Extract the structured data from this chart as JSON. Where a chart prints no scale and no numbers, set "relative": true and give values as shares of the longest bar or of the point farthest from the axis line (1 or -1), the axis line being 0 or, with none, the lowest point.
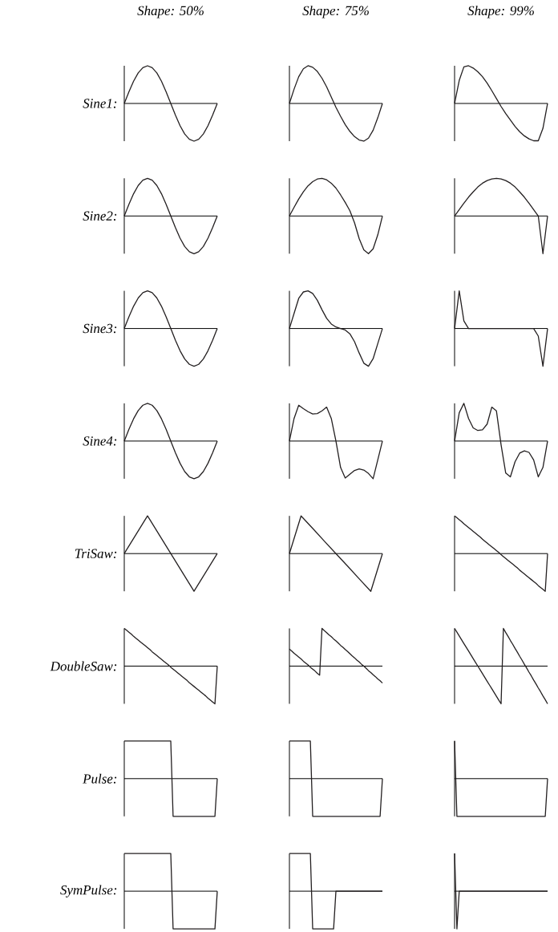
{
  "chart_data": [
    {
      "type": "line",
      "title": "Shape: 50%",
      "ylabel": "Sine1:",
      "relative": true,
      "color": "#231f20",
      "categories": [
        null,
        null,
        null,
        null,
        null,
        null,
        null,
        null,
        null,
        null,
        null,
        null,
        null,
        null,
        null,
        null,
        null,
        null,
        null,
        null,
        null
      ],
      "values": [
        0,
        0.31,
        0.59,
        0.81,
        0.95,
        1,
        0.95,
        0.81,
        0.59,
        0.31,
        0,
        -0.31,
        -0.59,
        -0.81,
        -0.95,
        -1,
        -0.95,
        -0.81,
        -0.59,
        -0.31,
        0
      ]
    },
    {
      "type": "line",
      "title": "Shape: 75%",
      "relative": true,
      "color": "#231f20",
      "categories": [
        null,
        null,
        null,
        null,
        null,
        null,
        null,
        null,
        null,
        null,
        null,
        null,
        null,
        null,
        null,
        null,
        null,
        null,
        null,
        null,
        null
      ],
      "values": [
        0,
        0.38,
        0.71,
        0.92,
        1,
        0.96,
        0.85,
        0.67,
        0.44,
        0.17,
        -0.1,
        -0.34,
        -0.56,
        -0.74,
        -0.88,
        -0.97,
        -1,
        -0.92,
        -0.71,
        -0.38,
        0
      ]
    },
    {
      "type": "line",
      "title": "Shape: 99%",
      "relative": true,
      "color": "#231f20",
      "categories": [
        null,
        null,
        null,
        null,
        null,
        null,
        null,
        null,
        null,
        null,
        null,
        null,
        null,
        null,
        null,
        null,
        null,
        null,
        null,
        null,
        null
      ],
      "values": [
        0,
        0.61,
        0.97,
        1,
        0.94,
        0.84,
        0.71,
        0.54,
        0.34,
        0.13,
        -0.08,
        -0.27,
        -0.44,
        -0.61,
        -0.75,
        -0.86,
        -0.94,
        -0.99,
        -0.99,
        -0.66,
        0
      ]
    },
    {
      "type": "line",
      "ylabel": "Sine2:",
      "relative": true,
      "color": "#231f20",
      "categories": [
        null,
        null,
        null,
        null,
        null,
        null,
        null,
        null,
        null,
        null,
        null,
        null,
        null,
        null,
        null,
        null,
        null,
        null,
        null,
        null,
        null
      ],
      "values": [
        0,
        0.31,
        0.59,
        0.81,
        0.95,
        1,
        0.95,
        0.81,
        0.59,
        0.31,
        0,
        -0.31,
        -0.59,
        -0.81,
        -0.95,
        -1,
        -0.95,
        -0.81,
        -0.59,
        -0.31,
        0
      ]
    },
    {
      "type": "line",
      "relative": true,
      "color": "#231f20",
      "categories": [
        null,
        null,
        null,
        null,
        null,
        null,
        null,
        null,
        null,
        null,
        null,
        null,
        null,
        null,
        null,
        null,
        null,
        null,
        null,
        null,
        null
      ],
      "values": [
        0,
        0.23,
        0.45,
        0.64,
        0.8,
        0.91,
        0.98,
        1,
        0.96,
        0.87,
        0.74,
        0.56,
        0.36,
        0.14,
        -0.18,
        -0.6,
        -0.9,
        -1,
        -0.87,
        -0.5,
        0
      ]
    },
    {
      "type": "line",
      "relative": true,
      "color": "#231f20",
      "categories": [
        null,
        null,
        null,
        null,
        null,
        null,
        null,
        null,
        null,
        null,
        null,
        null,
        null,
        null,
        null,
        null,
        null,
        null,
        null,
        null,
        null
      ],
      "values": [
        0,
        0.17,
        0.34,
        0.5,
        0.64,
        0.77,
        0.87,
        0.94,
        0.98,
        1,
        0.98,
        0.94,
        0.87,
        0.77,
        0.64,
        0.5,
        0.34,
        0.17,
        0,
        -1,
        0
      ]
    },
    {
      "type": "line",
      "ylabel": "Sine3:",
      "relative": true,
      "color": "#231f20",
      "categories": [
        null,
        null,
        null,
        null,
        null,
        null,
        null,
        null,
        null,
        null,
        null,
        null,
        null,
        null,
        null,
        null,
        null,
        null,
        null,
        null,
        null
      ],
      "values": [
        0,
        0.31,
        0.59,
        0.81,
        0.95,
        1,
        0.95,
        0.81,
        0.59,
        0.31,
        0,
        -0.31,
        -0.59,
        -0.81,
        -0.95,
        -1,
        -0.95,
        -0.81,
        -0.59,
        -0.31,
        0
      ]
    },
    {
      "type": "line",
      "relative": true,
      "color": "#231f20",
      "categories": [
        null,
        null,
        null,
        null,
        null,
        null,
        null,
        null,
        null,
        null,
        null,
        null,
        null,
        null,
        null,
        null,
        null,
        null,
        null,
        null,
        null
      ],
      "values": [
        0,
        0.4,
        0.8,
        0.97,
        1,
        0.93,
        0.75,
        0.5,
        0.27,
        0.12,
        0.04,
        0,
        -0.04,
        -0.14,
        -0.35,
        -0.65,
        -0.92,
        -1,
        -0.8,
        -0.4,
        0
      ]
    },
    {
      "type": "line",
      "relative": true,
      "color": "#231f20",
      "categories": [
        null,
        null,
        null,
        null,
        null,
        null,
        null,
        null,
        null,
        null,
        null,
        null,
        null,
        null,
        null,
        null,
        null,
        null,
        null,
        null,
        null
      ],
      "values": [
        0,
        1,
        0.2,
        0,
        0,
        0,
        0,
        0,
        0,
        0,
        0,
        0,
        0,
        0,
        0,
        0,
        0,
        0,
        -0.2,
        -1,
        0
      ]
    },
    {
      "type": "line",
      "ylabel": "Sine4:",
      "relative": true,
      "color": "#231f20",
      "categories": [
        null,
        null,
        null,
        null,
        null,
        null,
        null,
        null,
        null,
        null,
        null,
        null,
        null,
        null,
        null,
        null,
        null,
        null,
        null,
        null,
        null
      ],
      "values": [
        0,
        0.31,
        0.59,
        0.81,
        0.95,
        1,
        0.95,
        0.81,
        0.59,
        0.31,
        0,
        -0.31,
        -0.59,
        -0.81,
        -0.95,
        -1,
        -0.95,
        -0.81,
        -0.59,
        -0.31,
        0
      ]
    },
    {
      "type": "line",
      "relative": true,
      "color": "#231f20",
      "categories": [
        null,
        null,
        null,
        null,
        null,
        null,
        null,
        null,
        null,
        null,
        null,
        null,
        null,
        null,
        null,
        null,
        null,
        null,
        null,
        null,
        null
      ],
      "values": [
        0,
        0.6,
        0.95,
        0.86,
        0.78,
        0.72,
        0.73,
        0.8,
        0.9,
        0.6,
        0,
        -0.7,
        -0.98,
        -0.88,
        -0.78,
        -0.74,
        -0.77,
        -0.86,
        -1,
        -0.5,
        0
      ]
    },
    {
      "type": "line",
      "relative": true,
      "color": "#231f20",
      "categories": [
        null,
        null,
        null,
        null,
        null,
        null,
        null,
        null,
        null,
        null,
        null,
        null,
        null,
        null,
        null,
        null,
        null,
        null,
        null,
        null,
        null
      ],
      "values": [
        0,
        0.75,
        1,
        0.6,
        0.35,
        0.28,
        0.3,
        0.45,
        0.9,
        0.8,
        -0.1,
        -0.85,
        -0.95,
        -0.55,
        -0.32,
        -0.26,
        -0.3,
        -0.5,
        -0.95,
        -0.7,
        0
      ]
    },
    {
      "type": "line",
      "ylabel": "TriSaw:",
      "relative": true,
      "color": "#231f20",
      "categories": [
        null,
        null,
        null,
        null,
        null
      ],
      "values": [
        0,
        1,
        0,
        -1,
        0
      ]
    },
    {
      "type": "line",
      "relative": true,
      "color": "#231f20",
      "categories": [
        null,
        null,
        null,
        null,
        null,
        null,
        null,
        null,
        null
      ],
      "values": [
        0,
        1,
        0.67,
        0.33,
        0,
        -0.33,
        -0.67,
        -1,
        0
      ]
    },
    {
      "type": "line",
      "relative": true,
      "color": "#231f20",
      "categories": [
        null,
        null,
        null,
        null,
        null,
        null,
        null,
        null,
        null,
        null,
        null,
        null,
        null,
        null,
        null,
        null,
        null,
        null,
        null,
        null,
        null,
        null,
        null,
        null,
        null,
        null,
        null,
        null,
        null,
        null,
        null,
        null,
        null,
        null,
        null,
        null,
        null,
        null,
        null,
        null,
        null
      ],
      "values": [
        1,
        0.95,
        0.9,
        0.85,
        0.79,
        0.74,
        0.69,
        0.64,
        0.59,
        0.54,
        0.49,
        0.44,
        0.38,
        0.33,
        0.28,
        0.23,
        0.18,
        0.13,
        0.08,
        0.03,
        -0.03,
        -0.08,
        -0.13,
        -0.18,
        -0.23,
        -0.28,
        -0.33,
        -0.38,
        -0.44,
        -0.49,
        -0.54,
        -0.59,
        -0.64,
        -0.69,
        -0.74,
        -0.79,
        -0.85,
        -0.9,
        -0.95,
        -1,
        0
      ]
    },
    {
      "type": "line",
      "ylabel": "DoubleSaw:",
      "relative": true,
      "color": "#231f20",
      "categories": [
        null,
        null,
        null,
        null,
        null,
        null,
        null,
        null,
        null,
        null,
        null,
        null,
        null,
        null,
        null,
        null,
        null,
        null,
        null,
        null,
        null,
        null,
        null,
        null,
        null,
        null,
        null,
        null,
        null,
        null,
        null,
        null,
        null,
        null,
        null,
        null,
        null,
        null,
        null,
        null,
        null
      ],
      "values": [
        1,
        0.95,
        0.9,
        0.85,
        0.79,
        0.74,
        0.69,
        0.64,
        0.59,
        0.54,
        0.49,
        0.44,
        0.38,
        0.33,
        0.28,
        0.23,
        0.18,
        0.13,
        0.08,
        0.03,
        -0.03,
        -0.08,
        -0.13,
        -0.18,
        -0.23,
        -0.28,
        -0.33,
        -0.38,
        -0.44,
        -0.49,
        -0.54,
        -0.59,
        -0.64,
        -0.69,
        -0.74,
        -0.79,
        -0.85,
        -0.9,
        -0.95,
        -1,
        0
      ]
    },
    {
      "type": "line",
      "relative": true,
      "color": "#231f20",
      "categories": [
        null,
        null,
        null,
        null,
        null,
        null,
        null,
        null,
        null,
        null,
        null,
        null,
        null,
        null,
        null,
        null,
        null,
        null,
        null,
        null,
        null,
        null,
        null,
        null,
        null,
        null,
        null,
        null,
        null,
        null,
        null,
        null,
        null,
        null,
        null,
        null,
        null,
        null,
        null,
        null,
        null
      ],
      "values": [
        0.45,
        0.4,
        0.34,
        0.29,
        0.24,
        0.19,
        0.13,
        0.08,
        0.03,
        -0.03,
        -0.08,
        -0.13,
        -0.19,
        -0.24,
        1,
        0.94,
        0.89,
        0.83,
        0.78,
        0.72,
        0.67,
        0.61,
        0.55,
        0.5,
        0.44,
        0.39,
        0.33,
        0.27,
        0.22,
        0.16,
        0.11,
        0.05,
        0,
        -0.06,
        -0.12,
        -0.17,
        -0.23,
        -0.28,
        -0.34,
        -0.39,
        -0.45
      ]
    },
    {
      "type": "line",
      "relative": true,
      "color": "#231f20",
      "categories": [
        null,
        null,
        null,
        null,
        null,
        null,
        null,
        null,
        null,
        null,
        null,
        null,
        null,
        null,
        null,
        null,
        null,
        null,
        null,
        null,
        null,
        null,
        null,
        null,
        null,
        null,
        null,
        null,
        null,
        null,
        null,
        null,
        null,
        null,
        null,
        null,
        null,
        null,
        null,
        null,
        null
      ],
      "values": [
        1,
        0.9,
        0.8,
        0.7,
        0.6,
        0.5,
        0.4,
        0.3,
        0.2,
        0.1,
        0,
        -0.1,
        -0.2,
        -0.3,
        -0.4,
        -0.5,
        -0.6,
        -0.7,
        -0.8,
        -0.9,
        -1,
        1,
        0.89,
        0.79,
        0.68,
        0.58,
        0.47,
        0.37,
        0.26,
        0.16,
        0.05,
        -0.05,
        -0.16,
        -0.26,
        -0.37,
        -0.47,
        -0.58,
        -0.68,
        -0.79,
        -0.89,
        -1
      ]
    },
    {
      "type": "line",
      "ylabel": "Pulse:",
      "relative": true,
      "color": "#231f20",
      "categories": [
        null,
        null,
        null,
        null,
        null,
        null,
        null,
        null,
        null,
        null,
        null,
        null,
        null,
        null,
        null,
        null,
        null,
        null,
        null,
        null,
        null,
        null,
        null,
        null,
        null,
        null,
        null,
        null,
        null,
        null,
        null,
        null,
        null,
        null,
        null,
        null,
        null,
        null,
        null,
        null,
        null
      ],
      "values": [
        1,
        1,
        1,
        1,
        1,
        1,
        1,
        1,
        1,
        1,
        1,
        1,
        1,
        1,
        1,
        1,
        1,
        1,
        1,
        1,
        1,
        -1,
        -1,
        -1,
        -1,
        -1,
        -1,
        -1,
        -1,
        -1,
        -1,
        -1,
        -1,
        -1,
        -1,
        -1,
        -1,
        -1,
        -1,
        -1,
        0
      ]
    },
    {
      "type": "line",
      "relative": true,
      "color": "#231f20",
      "categories": [
        null,
        null,
        null,
        null,
        null,
        null,
        null,
        null,
        null,
        null,
        null,
        null,
        null,
        null,
        null,
        null,
        null,
        null,
        null,
        null,
        null,
        null,
        null,
        null,
        null,
        null,
        null,
        null,
        null,
        null,
        null,
        null,
        null,
        null,
        null,
        null,
        null,
        null,
        null,
        null,
        null
      ],
      "values": [
        1,
        1,
        1,
        1,
        1,
        1,
        1,
        1,
        1,
        1,
        -1,
        -1,
        -1,
        -1,
        -1,
        -1,
        -1,
        -1,
        -1,
        -1,
        -1,
        -1,
        -1,
        -1,
        -1,
        -1,
        -1,
        -1,
        -1,
        -1,
        -1,
        -1,
        -1,
        -1,
        -1,
        -1,
        -1,
        -1,
        -1,
        -1,
        0
      ]
    },
    {
      "type": "line",
      "relative": true,
      "color": "#231f20",
      "categories": [
        null,
        null,
        null,
        null,
        null,
        null,
        null,
        null,
        null,
        null,
        null,
        null,
        null,
        null,
        null,
        null,
        null,
        null,
        null,
        null,
        null,
        null,
        null,
        null,
        null,
        null,
        null,
        null,
        null,
        null,
        null,
        null,
        null,
        null,
        null,
        null,
        null,
        null,
        null,
        null,
        null
      ],
      "values": [
        1,
        -1,
        -1,
        -1,
        -1,
        -1,
        -1,
        -1,
        -1,
        -1,
        -1,
        -1,
        -1,
        -1,
        -1,
        -1,
        -1,
        -1,
        -1,
        -1,
        -1,
        -1,
        -1,
        -1,
        -1,
        -1,
        -1,
        -1,
        -1,
        -1,
        -1,
        -1,
        -1,
        -1,
        -1,
        -1,
        -1,
        -1,
        -1,
        -1,
        0
      ]
    },
    {
      "type": "line",
      "ylabel": "SymPulse:",
      "relative": true,
      "color": "#231f20",
      "categories": [
        null,
        null,
        null,
        null,
        null,
        null,
        null,
        null,
        null,
        null,
        null,
        null,
        null,
        null,
        null,
        null,
        null,
        null,
        null,
        null,
        null,
        null,
        null,
        null,
        null,
        null,
        null,
        null,
        null,
        null,
        null,
        null,
        null,
        null,
        null,
        null,
        null,
        null,
        null,
        null,
        null
      ],
      "values": [
        1,
        1,
        1,
        1,
        1,
        1,
        1,
        1,
        1,
        1,
        1,
        1,
        1,
        1,
        1,
        1,
        1,
        1,
        1,
        1,
        1,
        -1,
        -1,
        -1,
        -1,
        -1,
        -1,
        -1,
        -1,
        -1,
        -1,
        -1,
        -1,
        -1,
        -1,
        -1,
        -1,
        -1,
        -1,
        -1,
        0
      ]
    },
    {
      "type": "line",
      "relative": true,
      "color": "#231f20",
      "categories": [
        null,
        null,
        null,
        null,
        null,
        null,
        null,
        null,
        null,
        null,
        null,
        null,
        null,
        null,
        null,
        null,
        null,
        null,
        null,
        null,
        null,
        null,
        null,
        null,
        null,
        null,
        null,
        null,
        null,
        null,
        null,
        null,
        null,
        null,
        null,
        null,
        null,
        null,
        null,
        null,
        null
      ],
      "values": [
        1,
        1,
        1,
        1,
        1,
        1,
        1,
        1,
        1,
        1,
        -1,
        -1,
        -1,
        -1,
        -1,
        -1,
        -1,
        -1,
        -1,
        -1,
        0,
        0,
        0,
        0,
        0,
        0,
        0,
        0,
        0,
        0,
        0,
        0,
        0,
        0,
        0,
        0,
        0,
        0,
        0,
        0,
        0
      ]
    },
    {
      "type": "line",
      "relative": true,
      "color": "#231f20",
      "categories": [
        null,
        null,
        null,
        null,
        null,
        null,
        null,
        null,
        null,
        null,
        null,
        null,
        null,
        null,
        null,
        null,
        null,
        null,
        null,
        null,
        null,
        null,
        null,
        null,
        null,
        null,
        null,
        null,
        null,
        null,
        null,
        null,
        null,
        null,
        null,
        null,
        null,
        null,
        null,
        null,
        null
      ],
      "values": [
        1,
        -1,
        0,
        0,
        0,
        0,
        0,
        0,
        0,
        0,
        0,
        0,
        0,
        0,
        0,
        0,
        0,
        0,
        0,
        0,
        0,
        0,
        0,
        0,
        0,
        0,
        0,
        0,
        0,
        0,
        0,
        0,
        0,
        0,
        0,
        0,
        0,
        0,
        0,
        0,
        0
      ]
    }
  ]
}
